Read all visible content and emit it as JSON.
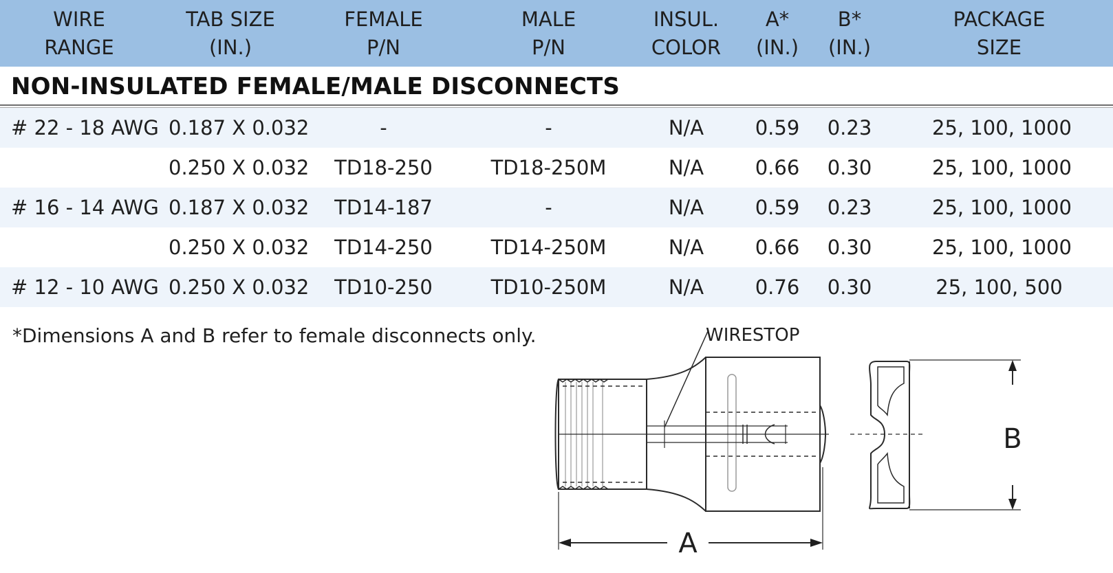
{
  "table": {
    "headers": [
      {
        "line1": "WIRE",
        "line2": "RANGE"
      },
      {
        "line1": "TAB SIZE",
        "line2": "(IN.)"
      },
      {
        "line1": "FEMALE",
        "line2": "P/N"
      },
      {
        "line1": "MALE",
        "line2": "P/N"
      },
      {
        "line1": "INSUL.",
        "line2": "COLOR"
      },
      {
        "line1": "A*",
        "line2": "(IN.)"
      },
      {
        "line1": "B*",
        "line2": "(IN.)"
      },
      {
        "line1": "PACKAGE",
        "line2": "SIZE"
      }
    ],
    "section_title": "NON-INSULATED FEMALE/MALE DISCONNECTS",
    "rows": [
      {
        "wire": "# 22 - 18 AWG",
        "tab": "0.187 X 0.032",
        "female": "-",
        "male": "-",
        "color": "N/A",
        "a": "0.59",
        "b": "0.23",
        "pkg": "25, 100, 1000"
      },
      {
        "wire": "",
        "tab": "0.250 X 0.032",
        "female": "TD18-250",
        "male": "TD18-250M",
        "color": "N/A",
        "a": "0.66",
        "b": "0.30",
        "pkg": "25, 100, 1000"
      },
      {
        "wire": "# 16 - 14 AWG",
        "tab": "0.187 X 0.032",
        "female": "TD14-187",
        "male": "-",
        "color": "N/A",
        "a": "0.59",
        "b": "0.23",
        "pkg": "25, 100, 1000"
      },
      {
        "wire": "",
        "tab": "0.250 X 0.032",
        "female": "TD14-250",
        "male": "TD14-250M",
        "color": "N/A",
        "a": "0.66",
        "b": "0.30",
        "pkg": "25, 100, 1000"
      },
      {
        "wire": "# 12 - 10 AWG",
        "tab": "0.250 X 0.032",
        "female": "TD10-250",
        "male": "TD10-250M",
        "color": "N/A",
        "a": "0.76",
        "b": "0.30",
        "pkg": "25, 100, 500"
      }
    ]
  },
  "footnote": "*Dimensions A and B refer to female disconnects only.",
  "diagram": {
    "wirestop_label": "WIRESTOP",
    "dim_a_label": "A",
    "dim_b_label": "B"
  },
  "colors": {
    "header_bg": "#9bbfe3",
    "row_shade": "#eef4fb"
  }
}
